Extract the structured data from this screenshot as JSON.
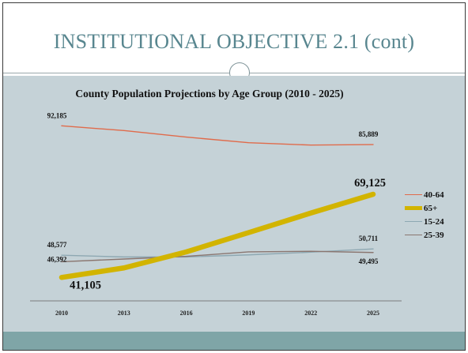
{
  "slide": {
    "title": "INSTITUTIONAL OBJECTIVE 2.1 (cont)"
  },
  "colors": {
    "title": "#58868f",
    "chart_background": "#c5d2d7",
    "bottom_band": "#7fa5a7",
    "series_40_64": "#e06b4b",
    "series_65_plus": "#d2b400",
    "series_15_24": "#8ea8b2",
    "series_25_39": "#8a7670"
  },
  "chart_data": {
    "type": "line",
    "title": "County Population Projections by Age Group (2010 - 2025)",
    "x": [
      "2010",
      "2013",
      "2016",
      "2019",
      "2022",
      "2025"
    ],
    "ylim": [
      30000,
      100000
    ],
    "grid": false,
    "legend_position": "right",
    "series": [
      {
        "name": "40-64",
        "color": "#e06b4b",
        "width": "thin",
        "values": [
          92185,
          90600,
          88400,
          86500,
          85700,
          85889
        ],
        "labels": [
          {
            "index": 0,
            "text": "92,185",
            "size": "small"
          },
          {
            "index": 5,
            "text": "85,889",
            "size": "small"
          }
        ]
      },
      {
        "name": "65+",
        "color": "#d2b400",
        "width": "thick",
        "values": [
          41105,
          44300,
          49700,
          56200,
          62800,
          69125
        ],
        "labels": [
          {
            "index": 0,
            "text": "41,105",
            "size": "large"
          },
          {
            "index": 5,
            "text": "69,125",
            "size": "large"
          }
        ]
      },
      {
        "name": "15-24",
        "color": "#8ea8b2",
        "width": "thin",
        "values": [
          48577,
          48000,
          48000,
          48700,
          49600,
          50711
        ],
        "labels": [
          {
            "index": 0,
            "text": "48,577",
            "size": "small"
          },
          {
            "index": 5,
            "text": "50,711",
            "size": "small"
          }
        ]
      },
      {
        "name": "25-39",
        "color": "#8a7670",
        "width": "thin",
        "values": [
          46392,
          47300,
          48200,
          49700,
          49900,
          49495
        ],
        "labels": [
          {
            "index": 0,
            "text": "46,392",
            "size": "small"
          },
          {
            "index": 5,
            "text": "49,495",
            "size": "small"
          }
        ]
      }
    ]
  }
}
